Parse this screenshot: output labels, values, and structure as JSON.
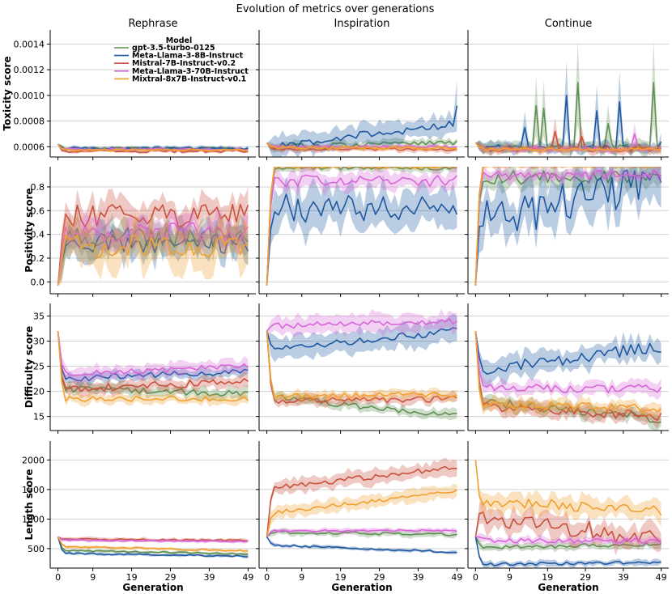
{
  "chart_data": {
    "type": "line",
    "title": "Evolution of metrics over generations",
    "columns": [
      "Rephrase",
      "Inspiration",
      "Continue"
    ],
    "xlabel": "Generation",
    "xticks": [
      0,
      9,
      19,
      29,
      39,
      49
    ],
    "xlim": [
      -2,
      51
    ],
    "legend": {
      "title": "Model",
      "placement": "top-left of first panel",
      "entries": [
        {
          "name": "gpt-3.5-turbo-0125",
          "color": "#5f8f52"
        },
        {
          "name": "Meta-Llama-3-8B-Instruct",
          "color": "#1f58a0"
        },
        {
          "name": "Mistral-7B-Instruct-v0.2",
          "color": "#c9503d"
        },
        {
          "name": "Meta-Llama-3-70B-Instruct",
          "color": "#d866d8"
        },
        {
          "name": "Mixtral-8x7B-Instruct-v0.1",
          "color": "#f0a030"
        }
      ]
    },
    "rows": [
      {
        "ylabel": "Toxicity score",
        "ylim": [
          0.00052,
          0.00151
        ],
        "yticks": [
          0.0006,
          0.0008,
          0.001,
          0.0012,
          0.0014
        ],
        "ytick_labels": [
          "0.0006",
          "0.0008",
          "0.0010",
          "0.0012",
          "0.0014"
        ],
        "panels": [
          {
            "series": [
              {
                "model": "gpt-3.5-turbo-0125",
                "start": 0.00062,
                "level": 0.000585,
                "noise": 1e-05,
                "band": 1.2e-05
              },
              {
                "model": "Meta-Llama-3-8B-Instruct",
                "start": 0.00062,
                "level": 0.000588,
                "noise": 1e-05,
                "band": 1.5e-05
              },
              {
                "model": "Mistral-7B-Instruct-v0.2",
                "start": 0.00062,
                "level": 0.000565,
                "noise": 1e-05,
                "band": 1.2e-05
              },
              {
                "model": "Meta-Llama-3-70B-Instruct",
                "start": 0.00062,
                "level": 0.00058,
                "noise": 8e-06,
                "band": 1e-05
              },
              {
                "model": "Mixtral-8x7B-Instruct-v0.1",
                "start": 0.00062,
                "level": 0.000575,
                "noise": 8e-06,
                "band": 1e-05
              }
            ]
          },
          {
            "series": [
              {
                "model": "gpt-3.5-turbo-0125",
                "start": 0.00063,
                "level": 0.0006,
                "end": 0.00063,
                "noise": 2e-05,
                "band": 3e-05
              },
              {
                "model": "Meta-Llama-3-8B-Instruct",
                "start": 0.00063,
                "level": 0.0006,
                "end": 0.00078,
                "noise": 3e-05,
                "band": 8e-05,
                "last": 0.00092
              },
              {
                "model": "Mistral-7B-Instruct-v0.2",
                "start": 0.00063,
                "level": 0.00058,
                "noise": 1e-05,
                "band": 2e-05
              },
              {
                "model": "Meta-Llama-3-70B-Instruct",
                "start": 0.00063,
                "level": 0.0006,
                "noise": 1e-05,
                "band": 1.5e-05
              },
              {
                "model": "Mixtral-8x7B-Instruct-v0.1",
                "start": 0.00063,
                "level": 0.00059,
                "noise": 1e-05,
                "band": 1.5e-05
              }
            ]
          },
          {
            "series": [
              {
                "model": "gpt-3.5-turbo-0125",
                "start": 0.00063,
                "level": 0.0006,
                "noise": 2e-05,
                "band": 5e-05,
                "spikes": [
                  [
                    16,
                    0.00092
                  ],
                  [
                    18,
                    0.0009
                  ],
                  [
                    27,
                    0.0011
                  ],
                  [
                    35,
                    0.00078
                  ],
                  [
                    47,
                    0.0011
                  ]
                ]
              },
              {
                "model": "Meta-Llama-3-8B-Instruct",
                "start": 0.00063,
                "level": 0.00059,
                "noise": 2e-05,
                "band": 4e-05,
                "spikes": [
                  [
                    13,
                    0.00075
                  ],
                  [
                    24,
                    0.001
                  ],
                  [
                    32,
                    0.00088
                  ],
                  [
                    38,
                    0.00095
                  ],
                  [
                    49,
                    0.00064
                  ]
                ]
              },
              {
                "model": "Mistral-7B-Instruct-v0.2",
                "start": 0.00063,
                "level": 0.00058,
                "noise": 2e-05,
                "band": 3e-05,
                "spikes": [
                  [
                    21,
                    0.00072
                  ],
                  [
                    28,
                    0.00068
                  ]
                ]
              },
              {
                "model": "Meta-Llama-3-70B-Instruct",
                "start": 0.00063,
                "level": 0.00058,
                "noise": 1.5e-05,
                "band": 2e-05,
                "spikes": [
                  [
                    42,
                    0.0007
                  ]
                ]
              },
              {
                "model": "Mixtral-8x7B-Instruct-v0.1",
                "start": 0.00063,
                "level": 0.00058,
                "noise": 1e-05,
                "band": 2e-05
              }
            ]
          }
        ]
      },
      {
        "ylabel": "Positivity score",
        "ylim": [
          -0.1,
          0.97
        ],
        "yticks": [
          0.0,
          0.2,
          0.4,
          0.6,
          0.8
        ],
        "ytick_labels": [
          "0.0",
          "0.2",
          "0.4",
          "0.6",
          "0.8"
        ],
        "panels": [
          {
            "series": [
              {
                "model": "gpt-3.5-turbo-0125",
                "start": -0.03,
                "level": 0.38,
                "noise": 0.09,
                "band": 0.12
              },
              {
                "model": "Meta-Llama-3-8B-Instruct",
                "start": -0.03,
                "level": 0.33,
                "noise": 0.09,
                "band": 0.12
              },
              {
                "model": "Mistral-7B-Instruct-v0.2",
                "start": -0.03,
                "level": 0.56,
                "noise": 0.1,
                "band": 0.12
              },
              {
                "model": "Meta-Llama-3-70B-Instruct",
                "start": -0.03,
                "level": 0.42,
                "noise": 0.08,
                "band": 0.12
              },
              {
                "model": "Mixtral-8x7B-Instruct-v0.1",
                "start": -0.03,
                "level": 0.3,
                "noise": 0.1,
                "band": 0.17
              }
            ]
          },
          {
            "series": [
              {
                "model": "gpt-3.5-turbo-0125",
                "start": -0.03,
                "level": 0.96,
                "noise": 0.02,
                "band": 0.03
              },
              {
                "model": "Meta-Llama-3-8B-Instruct",
                "start": -0.03,
                "level": 0.62,
                "noise": 0.12,
                "band": 0.16
              },
              {
                "model": "Mistral-7B-Instruct-v0.2",
                "start": -0.03,
                "level": 0.98,
                "noise": 0.01,
                "band": 0.02
              },
              {
                "model": "Meta-Llama-3-70B-Instruct",
                "start": -0.03,
                "level": 0.85,
                "noise": 0.05,
                "band": 0.07
              },
              {
                "model": "Mixtral-8x7B-Instruct-v0.1",
                "start": -0.03,
                "level": 0.97,
                "noise": 0.01,
                "band": 0.02
              }
            ]
          },
          {
            "series": [
              {
                "model": "gpt-3.5-turbo-0125",
                "start": -0.03,
                "level": 0.88,
                "noise": 0.06,
                "band": 0.08
              },
              {
                "model": "Meta-Llama-3-8B-Instruct",
                "start": -0.03,
                "level": 0.5,
                "end": 0.85,
                "noise": 0.17,
                "band": 0.2
              },
              {
                "model": "Mistral-7B-Instruct-v0.2",
                "start": -0.03,
                "level": 0.98,
                "noise": 0.01,
                "band": 0.02
              },
              {
                "model": "Meta-Llama-3-70B-Instruct",
                "start": -0.03,
                "level": 0.9,
                "noise": 0.04,
                "band": 0.05
              },
              {
                "model": "Mixtral-8x7B-Instruct-v0.1",
                "start": -0.03,
                "level": 0.98,
                "noise": 0.01,
                "band": 0.02
              }
            ]
          }
        ]
      },
      {
        "ylabel": "Difficulty score",
        "ylim": [
          12.2,
          37.5
        ],
        "yticks": [
          15,
          20,
          25,
          30,
          35
        ],
        "ytick_labels": [
          "15",
          "20",
          "25",
          "30",
          "35"
        ],
        "panels": [
          {
            "series": [
              {
                "model": "gpt-3.5-turbo-0125",
                "start": 32,
                "level": 20.5,
                "end": 19.5,
                "noise": 0.6,
                "band": 1.0
              },
              {
                "model": "Meta-Llama-3-8B-Instruct",
                "start": 32,
                "level": 22.5,
                "end": 24,
                "noise": 0.6,
                "band": 1.0
              },
              {
                "model": "Mistral-7B-Instruct-v0.2",
                "start": 32,
                "level": 20.5,
                "end": 22,
                "noise": 0.8,
                "band": 1.2
              },
              {
                "model": "Meta-Llama-3-70B-Instruct",
                "start": 32,
                "level": 23.5,
                "end": 25,
                "noise": 0.6,
                "band": 1.3
              },
              {
                "model": "Mixtral-8x7B-Instruct-v0.1",
                "start": 32,
                "level": 18.5,
                "end": 18.5,
                "noise": 0.5,
                "band": 0.9
              }
            ]
          },
          {
            "series": [
              {
                "model": "gpt-3.5-turbo-0125",
                "start": 32,
                "level": 19,
                "end": 15,
                "noise": 0.6,
                "band": 1.0
              },
              {
                "model": "Meta-Llama-3-8B-Instruct",
                "start": 32,
                "level": 28.5,
                "end": 32,
                "noise": 0.8,
                "band": 2.2
              },
              {
                "model": "Mistral-7B-Instruct-v0.2",
                "start": 32,
                "level": 18,
                "end": 18.5,
                "noise": 0.6,
                "band": 1.0
              },
              {
                "model": "Meta-Llama-3-70B-Instruct",
                "start": 32,
                "level": 33,
                "end": 34,
                "noise": 0.6,
                "band": 1.8
              },
              {
                "model": "Mixtral-8x7B-Instruct-v0.1",
                "start": 32,
                "level": 19,
                "end": 19.5,
                "noise": 0.5,
                "band": 0.9
              }
            ]
          },
          {
            "series": [
              {
                "model": "gpt-3.5-turbo-0125",
                "start": 32,
                "level": 18,
                "end": 14.5,
                "noise": 0.9,
                "band": 1.3
              },
              {
                "model": "Meta-Llama-3-8B-Instruct",
                "start": 32,
                "level": 24,
                "end": 29,
                "noise": 1.2,
                "band": 2.2
              },
              {
                "model": "Mistral-7B-Instruct-v0.2",
                "start": 32,
                "level": 17,
                "end": 15,
                "noise": 1.0,
                "band": 1.4
              },
              {
                "model": "Meta-Llama-3-70B-Instruct",
                "start": 32,
                "level": 20.5,
                "end": 20.5,
                "noise": 0.9,
                "band": 1.3
              },
              {
                "model": "Mixtral-8x7B-Instruct-v0.1",
                "start": 32,
                "level": 17.5,
                "end": 16.5,
                "noise": 0.8,
                "band": 1.2
              }
            ]
          }
        ]
      },
      {
        "ylabel": "Length score",
        "ylim": [
          170,
          2320
        ],
        "yticks": [
          500,
          1000,
          1500,
          2000
        ],
        "ytick_labels": [
          "500",
          "1000",
          "1500",
          "2000"
        ],
        "panels": [
          {
            "series": [
              {
                "model": "gpt-3.5-turbo-0125",
                "start": 700,
                "level": 470,
                "end": 410,
                "noise": 12,
                "band": 25
              },
              {
                "model": "Meta-Llama-3-8B-Instruct",
                "start": 700,
                "level": 420,
                "end": 370,
                "noise": 12,
                "band": 25
              },
              {
                "model": "Mistral-7B-Instruct-v0.2",
                "start": 700,
                "level": 660,
                "end": 640,
                "noise": 12,
                "band": 30
              },
              {
                "model": "Meta-Llama-3-70B-Instruct",
                "start": 700,
                "level": 640,
                "end": 620,
                "noise": 10,
                "band": 25
              },
              {
                "model": "Mixtral-8x7B-Instruct-v0.1",
                "start": 700,
                "level": 540,
                "end": 460,
                "noise": 12,
                "band": 25
              }
            ]
          },
          {
            "series": [
              {
                "model": "gpt-3.5-turbo-0125",
                "start": 700,
                "level": 780,
                "end": 740,
                "noise": 25,
                "band": 50
              },
              {
                "model": "Meta-Llama-3-8B-Instruct",
                "start": 700,
                "level": 560,
                "end": 440,
                "noise": 15,
                "band": 30
              },
              {
                "model": "Mistral-7B-Instruct-v0.2",
                "start": 700,
                "level": 1520,
                "end": 1880,
                "noise": 45,
                "band": 120
              },
              {
                "model": "Meta-Llama-3-70B-Instruct",
                "start": 700,
                "level": 800,
                "end": 810,
                "noise": 15,
                "band": 40
              },
              {
                "model": "Mixtral-8x7B-Instruct-v0.1",
                "start": 700,
                "level": 1100,
                "end": 1470,
                "noise": 35,
                "band": 110
              }
            ]
          },
          {
            "series": [
              {
                "model": "gpt-3.5-turbo-0125",
                "start": 700,
                "level": 520,
                "end": 570,
                "noise": 30,
                "band": 60
              },
              {
                "model": "Meta-Llama-3-8B-Instruct",
                "start": 700,
                "level": 230,
                "end": 270,
                "noise": 25,
                "band": 50
              },
              {
                "model": "Mistral-7B-Instruct-v0.2",
                "start": 700,
                "level": 1050,
                "end": 650,
                "noise": 150,
                "band": 180
              },
              {
                "model": "Meta-Llama-3-70B-Instruct",
                "start": 700,
                "level": 640,
                "end": 630,
                "noise": 40,
                "band": 60
              },
              {
                "model": "Mixtral-8x7B-Instruct-v0.1",
                "start": 2000,
                "level": 1300,
                "end": 1150,
                "noise": 90,
                "band": 160
              }
            ]
          }
        ]
      }
    ]
  }
}
